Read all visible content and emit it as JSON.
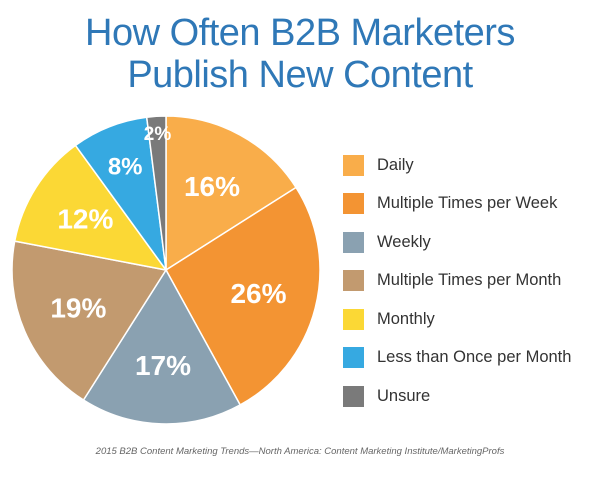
{
  "title_line1": "How Often B2B Marketers",
  "title_line2": "Publish New Content",
  "source": "2015 B2B Content Marketing Trends—North America: Content Marketing Institute/MarketingProfs",
  "chart_data": {
    "type": "pie",
    "title": "How Often B2B Marketers Publish New Content",
    "legend_position": "right",
    "slices": [
      {
        "label": "Daily",
        "value": 16,
        "display": "16%",
        "color": "#f9ad4a"
      },
      {
        "label": "Multiple Times per Week",
        "value": 26,
        "display": "26%",
        "color": "#f39433"
      },
      {
        "label": "Weekly",
        "value": 17,
        "display": "17%",
        "color": "#8aa1b1"
      },
      {
        "label": "Multiple Times per Month",
        "value": 19,
        "display": "19%",
        "color": "#c29a6f"
      },
      {
        "label": "Monthly",
        "value": 12,
        "display": "12%",
        "color": "#fbd835"
      },
      {
        "label": "Less than Once per Month",
        "value": 8,
        "display": "8%",
        "color": "#36a9e1"
      },
      {
        "label": "Unsure",
        "value": 2,
        "display": "2%",
        "color": "#7a7a7a"
      }
    ]
  }
}
